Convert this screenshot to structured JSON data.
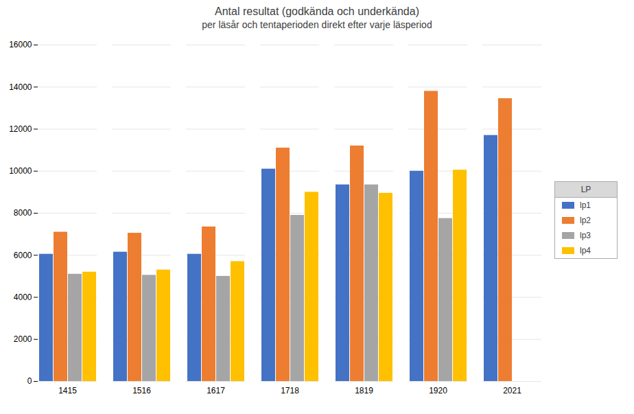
{
  "chart_data": {
    "type": "bar",
    "title": "Antal resultat (godkända och underkända)",
    "subtitle": "per läsår och tentaperioden direkt efter varje läsperiod",
    "legend_title": "LP",
    "categories": [
      "1415",
      "1516",
      "1617",
      "1718",
      "1819",
      "1920",
      "2021"
    ],
    "series": [
      {
        "name": "lp1",
        "color": "#4472C4",
        "values": [
          6050,
          6150,
          6050,
          10100,
          9350,
          10000,
          11700
        ]
      },
      {
        "name": "lp2",
        "color": "#ED7D31",
        "values": [
          7100,
          7050,
          7350,
          11100,
          11200,
          13800,
          13450
        ]
      },
      {
        "name": "lp3",
        "color": "#A5A5A5",
        "values": [
          5100,
          5050,
          5000,
          7900,
          9350,
          7750,
          0
        ]
      },
      {
        "name": "lp4",
        "color": "#FFC000",
        "values": [
          5200,
          5300,
          5700,
          9000,
          8950,
          10050,
          0
        ]
      }
    ],
    "ylim": [
      0,
      16000
    ],
    "yticks": [
      0,
      2000,
      4000,
      6000,
      8000,
      10000,
      12000,
      14000,
      16000
    ],
    "grid": true,
    "legend": "right"
  }
}
